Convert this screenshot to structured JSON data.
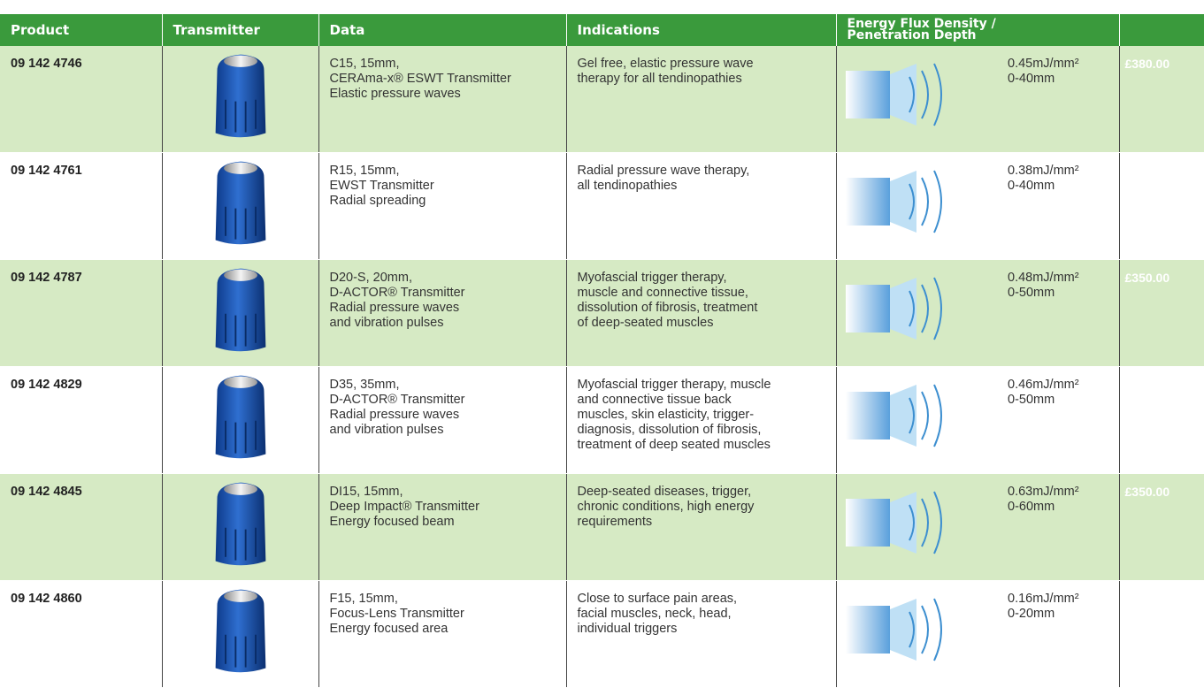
{
  "header": {
    "columns": [
      "Product",
      "Transmitter",
      "Data",
      "Indications",
      [
        "Energy Flux Density /",
        "Penetration Depth"
      ]
    ]
  },
  "rows": [
    {
      "product": "09 142 4746",
      "data": [
        "C15, 15mm,",
        "CERAma-x® ESWT Transmitter",
        "Elastic pressure waves"
      ],
      "indications": [
        "Gel free, elastic pressure wave",
        "therapy for all tendinopathies"
      ],
      "flux": "0.45mJ/mm²",
      "depth": "0-40mm",
      "price": "£380.00"
    },
    {
      "product": "09 142 4761",
      "data": [
        "R15, 15mm,",
        "EWST Transmitter",
        "Radial spreading"
      ],
      "indications": [
        "Radial pressure wave therapy,",
        "all tendinopathies"
      ],
      "flux": "0.38mJ/mm²",
      "depth": "0-40mm"
    },
    {
      "product": "09 142 4787",
      "data": [
        "D20-S, 20mm,",
        "D-ACTOR® Transmitter",
        "Radial pressure waves",
        "and vibration pulses"
      ],
      "indications": [
        "Myofascial trigger therapy,",
        "muscle and connective tissue,",
        "dissolution of fibrosis, treatment",
        "of deep-seated muscles"
      ],
      "flux": "0.48mJ/mm²",
      "depth": "0-50mm",
      "price": "£350.00"
    },
    {
      "product": "09 142 4829",
      "data": [
        "D35, 35mm,",
        "D-ACTOR® Transmitter",
        "Radial pressure waves",
        "and vibration pulses"
      ],
      "indications": [
        "Myofascial trigger therapy, muscle",
        "and connective tissue back",
        "muscles, skin elasticity, trigger-",
        "diagnosis, dissolution of fibrosis,",
        "treatment of deep seated muscles"
      ],
      "flux": "0.46mJ/mm²",
      "depth": "0-50mm"
    },
    {
      "product": "09 142 4845",
      "data": [
        "DI15, 15mm,",
        "Deep Impact® Transmitter",
        "Energy focused beam"
      ],
      "indications": [
        "Deep-seated diseases, trigger,",
        "chronic conditions, high energy",
        "requirements"
      ],
      "flux": "0.63mJ/mm²",
      "depth": "0-60mm",
      "price": "£350.00"
    },
    {
      "product": "09 142 4860",
      "data": [
        "F15, 15mm,",
        "Focus-Lens Transmitter",
        "Energy focused area"
      ],
      "indications": [
        "Close to surface pain areas,",
        "facial muscles, neck, head,",
        "individual triggers"
      ],
      "flux": "0.16mJ/mm²",
      "depth": "0-20mm"
    }
  ]
}
